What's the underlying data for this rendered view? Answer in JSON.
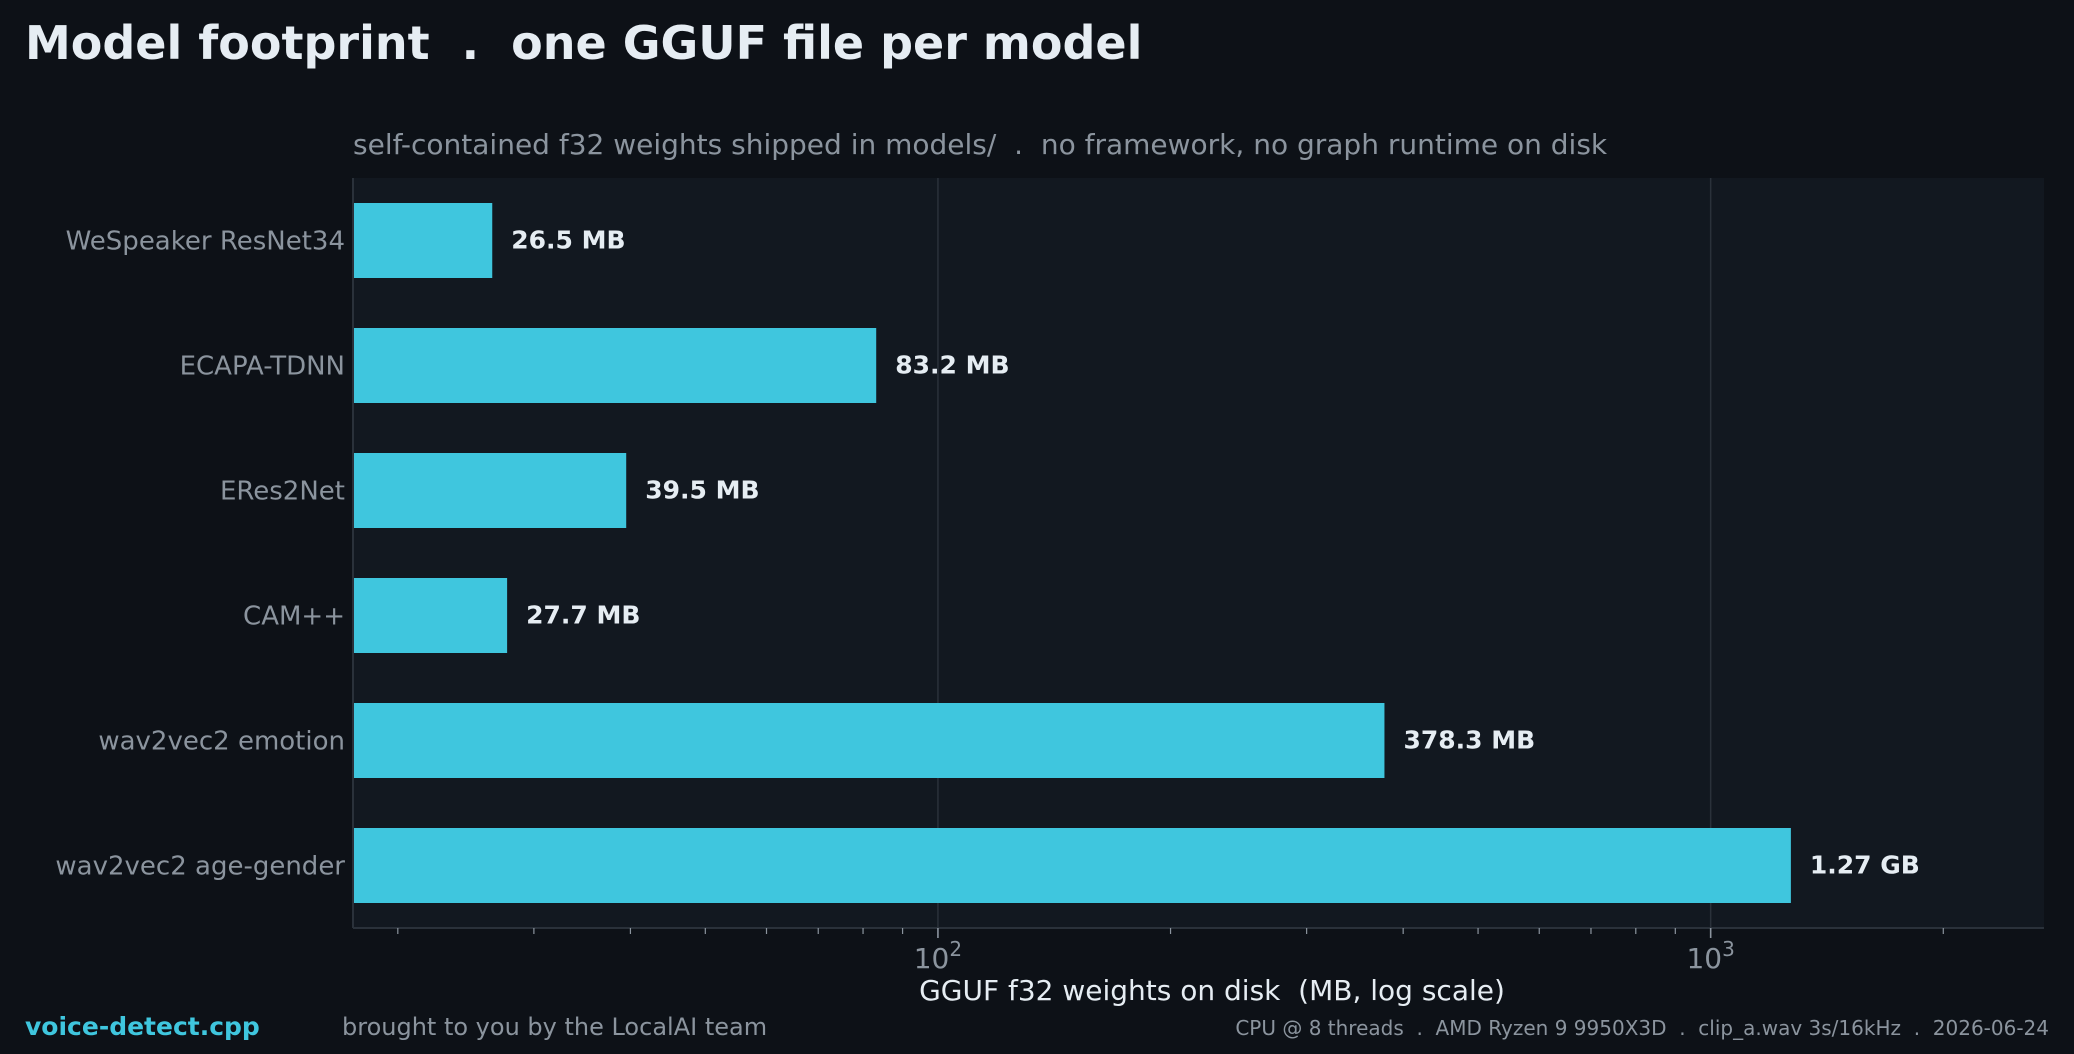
{
  "page": {
    "title": "Model footprint  .  one GGUF file per model",
    "brand": "voice-detect.cpp",
    "credit": "brought to you by the LocalAI team",
    "footer_info": "CPU @ 8 threads  .  AMD Ryzen 9 9950X3D  .  clip_a.wav 3s/16kHz  .  2026-06-24"
  },
  "colors": {
    "background": "#0d1117",
    "plot_background": "#121820",
    "bar": "#3fc6de",
    "grid": "#2a313a",
    "axis_text": "#8b949e",
    "label_text": "#e6edf3"
  },
  "chart_data": {
    "type": "bar",
    "orientation": "horizontal",
    "title": "self-contained f32 weights shipped in models/  .  no framework, no graph runtime on disk",
    "xlabel": "GGUF f32 weights on disk  (MB, log scale)",
    "ylabel": "",
    "x_scale": "log",
    "xlim": [
      17.5,
      2700
    ],
    "grid": "x-major",
    "categories": [
      "WeSpeaker ResNet34",
      "ECAPA-TDNN",
      "ERes2Net",
      "CAM++",
      "wav2vec2 emotion",
      "wav2vec2 age-gender"
    ],
    "values": [
      26.5,
      83.2,
      39.5,
      27.7,
      378.3,
      1270
    ],
    "value_labels": [
      "26.5 MB",
      "83.2 MB",
      "39.5 MB",
      "27.7 MB",
      "378.3 MB",
      "1.27 GB"
    ],
    "major_ticks": [
      {
        "value": 100,
        "base": "10",
        "exp": "2"
      },
      {
        "value": 1000,
        "base": "10",
        "exp": "3"
      }
    ],
    "minor_ticks": [
      20,
      30,
      40,
      50,
      60,
      70,
      80,
      90,
      200,
      300,
      400,
      500,
      600,
      700,
      800,
      900,
      2000
    ]
  }
}
